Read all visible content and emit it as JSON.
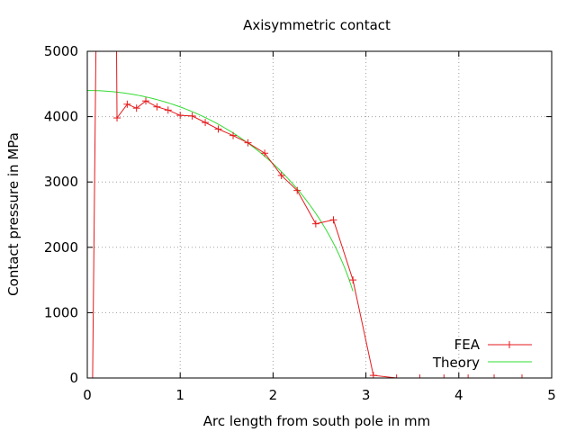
{
  "chart_data": {
    "type": "line",
    "title": "Axisymmetric contact",
    "xlabel": "Arc length from south pole in mm",
    "ylabel": "Contact pressure in MPa",
    "xlim": [
      0,
      5
    ],
    "ylim": [
      0,
      5000
    ],
    "xticks": [
      0,
      1,
      2,
      3,
      4,
      5
    ],
    "yticks": [
      0,
      1000,
      2000,
      3000,
      4000,
      5000
    ],
    "grid": true,
    "legend_position": "bottom-right",
    "series": [
      {
        "name": "FEA",
        "color": "#e41a1c",
        "marker": "plus",
        "points": [
          [
            0.05,
            -1000
          ],
          [
            0.1,
            6000
          ],
          [
            0.31,
            6000
          ],
          [
            0.32,
            3980
          ],
          [
            0.43,
            4190
          ],
          [
            0.53,
            4130
          ],
          [
            0.63,
            4240
          ],
          [
            0.75,
            4150
          ],
          [
            0.87,
            4100
          ],
          [
            1.0,
            4020
          ],
          [
            1.13,
            4010
          ],
          [
            1.27,
            3910
          ],
          [
            1.41,
            3810
          ],
          [
            1.57,
            3710
          ],
          [
            1.73,
            3600
          ],
          [
            1.91,
            3440
          ],
          [
            2.09,
            3100
          ],
          [
            2.26,
            2870
          ],
          [
            2.46,
            2360
          ],
          [
            2.65,
            2420
          ],
          [
            2.86,
            1500
          ],
          [
            3.08,
            40
          ],
          [
            3.33,
            0
          ],
          [
            3.58,
            0
          ],
          [
            3.84,
            0
          ],
          [
            4.1,
            0
          ],
          [
            4.38,
            0
          ],
          [
            4.68,
            0
          ]
        ],
        "markers": [
          [
            0.32,
            3980
          ],
          [
            0.43,
            4190
          ],
          [
            0.53,
            4130
          ],
          [
            0.63,
            4240
          ],
          [
            0.75,
            4150
          ],
          [
            0.87,
            4100
          ],
          [
            1.0,
            4020
          ],
          [
            1.13,
            4010
          ],
          [
            1.27,
            3910
          ],
          [
            1.41,
            3810
          ],
          [
            1.57,
            3710
          ],
          [
            1.73,
            3600
          ],
          [
            1.91,
            3440
          ],
          [
            2.09,
            3100
          ],
          [
            2.26,
            2870
          ],
          [
            2.46,
            2360
          ],
          [
            2.65,
            2420
          ],
          [
            2.86,
            1500
          ],
          [
            3.08,
            40
          ],
          [
            3.33,
            0
          ],
          [
            3.58,
            0
          ],
          [
            3.84,
            0
          ],
          [
            4.1,
            0
          ],
          [
            4.38,
            0
          ],
          [
            4.68,
            0
          ]
        ]
      },
      {
        "name": "Theory",
        "color": "#32dc32",
        "marker": "none",
        "formula": "p0*sqrt(1-(x/a)^2)",
        "p0": 4400,
        "a": 3.0,
        "x_range": [
          0,
          2.86
        ]
      }
    ]
  }
}
